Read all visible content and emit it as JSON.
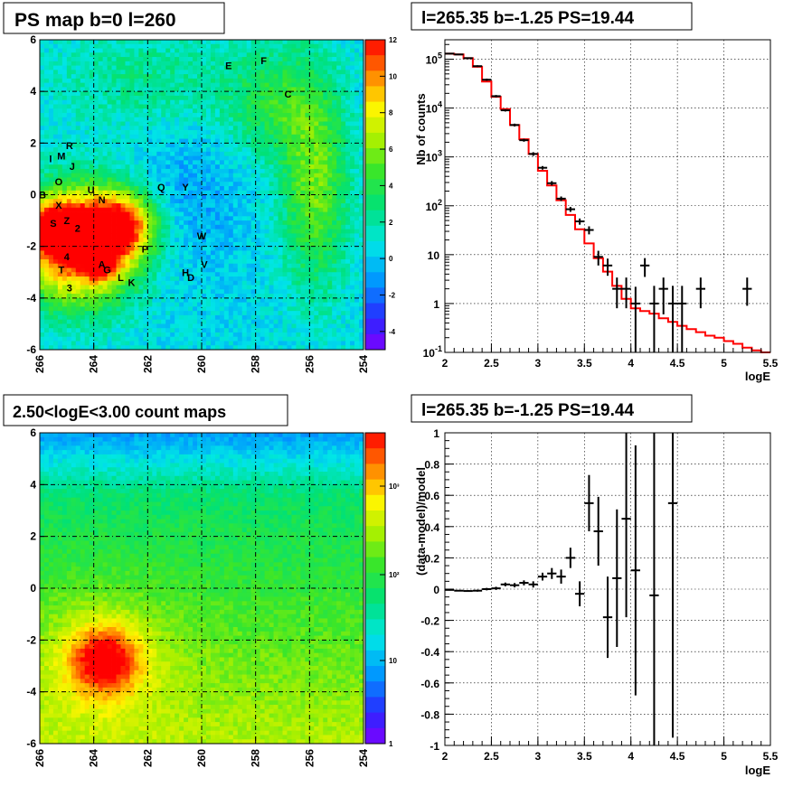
{
  "panels": {
    "map1": {
      "title": "PS map b=0 l=260"
    },
    "spec1": {
      "title": "l=265.35 b=-1.25 PS=19.44"
    },
    "map2": {
      "title": "2.50<logE<3.00 count maps"
    },
    "spec2": {
      "title": "l=265.35 b=-1.25 PS=19.44"
    }
  },
  "colors": {
    "model_line": "#ff0000",
    "data": "#000000"
  },
  "chart_data": [
    {
      "type": "heatmap",
      "title": "PS map b=0 l=260",
      "x_ticks": [
        "266",
        "264",
        "262",
        "260",
        "258",
        "256",
        "254"
      ],
      "y_ticks": [
        "6",
        "4",
        "2",
        "0",
        "-2",
        "-4",
        "-6"
      ],
      "xlim": [
        266,
        254
      ],
      "ylim": [
        -6,
        6
      ],
      "colorbar": {
        "scale": "linear",
        "range": [
          -5,
          12
        ],
        "ticks": [
          "12",
          "10",
          "8",
          "6",
          "4",
          "2",
          "0",
          "-2",
          "-4"
        ]
      },
      "grid": true,
      "sources": [
        {
          "label": "E",
          "l": 259.0,
          "b": 5.0
        },
        {
          "label": "F",
          "l": 257.7,
          "b": 5.2
        },
        {
          "label": "C",
          "l": 256.8,
          "b": 3.9
        },
        {
          "label": "R",
          "l": 264.9,
          "b": 1.9
        },
        {
          "label": "I",
          "l": 265.6,
          "b": 1.4
        },
        {
          "label": "M",
          "l": 265.2,
          "b": 1.5
        },
        {
          "label": "J",
          "l": 264.8,
          "b": 1.1
        },
        {
          "label": "O",
          "l": 265.3,
          "b": 0.5
        },
        {
          "label": "B",
          "l": 265.9,
          "b": 0.0
        },
        {
          "label": "U",
          "l": 264.1,
          "b": 0.2
        },
        {
          "label": "N",
          "l": 263.7,
          "b": -0.2
        },
        {
          "label": "X",
          "l": 265.3,
          "b": -0.4
        },
        {
          "label": "Q",
          "l": 261.5,
          "b": 0.3
        },
        {
          "label": "Y",
          "l": 260.6,
          "b": 0.3
        },
        {
          "label": "S",
          "l": 265.5,
          "b": -1.1
        },
        {
          "label": "Z",
          "l": 265.0,
          "b": -1.0
        },
        {
          "label": "2",
          "l": 264.6,
          "b": -1.3
        },
        {
          "label": "W",
          "l": 260.0,
          "b": -1.6
        },
        {
          "label": "P",
          "l": 262.1,
          "b": -2.1
        },
        {
          "label": "4",
          "l": 265.0,
          "b": -2.4
        },
        {
          "label": "A",
          "l": 263.7,
          "b": -2.7
        },
        {
          "label": "G",
          "l": 263.5,
          "b": -2.9
        },
        {
          "label": "V",
          "l": 259.9,
          "b": -2.7
        },
        {
          "label": "T",
          "l": 265.2,
          "b": -2.9
        },
        {
          "label": "H",
          "l": 260.6,
          "b": -3.0
        },
        {
          "label": "D",
          "l": 260.4,
          "b": -3.2
        },
        {
          "label": "L",
          "l": 263.0,
          "b": -3.2
        },
        {
          "label": "K",
          "l": 262.6,
          "b": -3.4
        },
        {
          "label": "3",
          "l": 264.9,
          "b": -3.6
        }
      ]
    },
    {
      "type": "line",
      "title": "l=265.35 b=-1.25 PS=19.44",
      "xlabel": "logE",
      "ylabel": "Nb of counts",
      "yscale": "log",
      "xlim": [
        2,
        5.5
      ],
      "ylim": [
        0.1,
        250000
      ],
      "x_ticks": [
        "2",
        "2.5",
        "3",
        "3.5",
        "4",
        "4.5",
        "5",
        "5.5"
      ],
      "y_ticks": [
        {
          "v": 0.1,
          "base": "10",
          "exp": "-1"
        },
        {
          "v": 1,
          "base": "1",
          "exp": ""
        },
        {
          "v": 10,
          "base": "10",
          "exp": ""
        },
        {
          "v": 100,
          "base": "10",
          "exp": "2"
        },
        {
          "v": 1000,
          "base": "10",
          "exp": "3"
        },
        {
          "v": 10000,
          "base": "10",
          "exp": "4"
        },
        {
          "v": 100000,
          "base": "10",
          "exp": "5"
        }
      ],
      "grid": true,
      "series": [
        {
          "kind": "model",
          "bin_edges": [
            2.0,
            2.1,
            2.2,
            2.3,
            2.4,
            2.5,
            2.6,
            2.7,
            2.8,
            2.9,
            3.0,
            3.1,
            3.2,
            3.3,
            3.4,
            3.5,
            3.6,
            3.7,
            3.8,
            3.9,
            4.0,
            4.1,
            4.2,
            4.3,
            4.4,
            4.5,
            4.6,
            4.7,
            4.8,
            4.9,
            5.0,
            5.1,
            5.2,
            5.3,
            5.4,
            5.5
          ],
          "values": [
            130000,
            125000,
            105000,
            70000,
            35000,
            17000,
            9500,
            4500,
            2300,
            1150,
            520,
            260,
            130,
            65,
            33,
            17,
            8.5,
            4.5,
            2.3,
            1.25,
            0.8,
            0.7,
            0.62,
            0.5,
            0.42,
            0.35,
            0.3,
            0.26,
            0.22,
            0.2,
            0.17,
            0.15,
            0.125,
            0.11,
            0.1
          ]
        },
        {
          "kind": "data",
          "points": [
            {
              "x": 2.05,
              "y": 130000,
              "lo": 126000,
              "hi": 134000
            },
            {
              "x": 2.15,
              "y": 125000,
              "lo": 121000,
              "hi": 129000
            },
            {
              "x": 2.25,
              "y": 105000,
              "lo": 101000,
              "hi": 109000
            },
            {
              "x": 2.35,
              "y": 72000,
              "lo": 69000,
              "hi": 75000
            },
            {
              "x": 2.45,
              "y": 38000,
              "lo": 36000,
              "hi": 40000
            },
            {
              "x": 2.55,
              "y": 17500,
              "lo": 16500,
              "hi": 18500
            },
            {
              "x": 2.65,
              "y": 9000,
              "lo": 8500,
              "hi": 9500
            },
            {
              "x": 2.75,
              "y": 4500,
              "lo": 4200,
              "hi": 4800
            },
            {
              "x": 2.85,
              "y": 2200,
              "lo": 2050,
              "hi": 2350
            },
            {
              "x": 2.95,
              "y": 1150,
              "lo": 1050,
              "hi": 1250
            },
            {
              "x": 3.05,
              "y": 600,
              "lo": 550,
              "hi": 650
            },
            {
              "x": 3.15,
              "y": 290,
              "lo": 260,
              "hi": 320
            },
            {
              "x": 3.25,
              "y": 140,
              "lo": 125,
              "hi": 155
            },
            {
              "x": 3.35,
              "y": 85,
              "lo": 75,
              "hi": 95
            },
            {
              "x": 3.45,
              "y": 48,
              "lo": 41,
              "hi": 55
            },
            {
              "x": 3.55,
              "y": 32,
              "lo": 26,
              "hi": 38
            },
            {
              "x": 3.65,
              "y": 9,
              "lo": 6,
              "hi": 12
            },
            {
              "x": 3.75,
              "y": 6,
              "lo": 3.7,
              "hi": 8.3
            },
            {
              "x": 3.85,
              "y": 2,
              "lo": 0.8,
              "hi": 3.4
            },
            {
              "x": 3.95,
              "y": 2,
              "lo": 0.8,
              "hi": 3.4
            },
            {
              "x": 4.05,
              "y": 1,
              "lo": 0.1,
              "hi": 2.2
            },
            {
              "x": 4.15,
              "y": 6,
              "lo": 3.5,
              "hi": 8.5
            },
            {
              "x": 4.25,
              "y": 1,
              "lo": 0.1,
              "hi": 2.3
            },
            {
              "x": 4.35,
              "y": 2,
              "lo": 0.6,
              "hi": 3.4
            },
            {
              "x": 4.45,
              "y": 1,
              "lo": 0.1,
              "hi": 2.3
            },
            {
              "x": 4.55,
              "y": 1,
              "lo": 0.1,
              "hi": 2.3
            },
            {
              "x": 4.75,
              "y": 2,
              "lo": 0.8,
              "hi": 3.4
            },
            {
              "x": 5.25,
              "y": 2,
              "lo": 0.9,
              "hi": 3.4
            }
          ]
        }
      ]
    },
    {
      "type": "heatmap",
      "title": "2.50<logE<3.00 count maps",
      "x_ticks": [
        "266",
        "264",
        "262",
        "260",
        "258",
        "256",
        "254"
      ],
      "y_ticks": [
        "6",
        "4",
        "2",
        "0",
        "-2",
        "-4",
        "-6"
      ],
      "xlim": [
        266,
        254
      ],
      "ylim": [
        -6,
        6
      ],
      "colorbar": {
        "scale": "log",
        "range": [
          1,
          5000
        ],
        "ticks": [
          "10³",
          "10²",
          "10",
          "1"
        ]
      },
      "grid": true
    },
    {
      "type": "scatter",
      "title": "l=265.35 b=-1.25 PS=19.44",
      "xlabel": "logE",
      "ylabel": "(data-model)/model",
      "xlim": [
        2,
        5.5
      ],
      "ylim": [
        -1,
        1
      ],
      "x_ticks": [
        "2",
        "2.5",
        "3",
        "3.5",
        "4",
        "4.5",
        "5",
        "5.5"
      ],
      "y_ticks": [
        "1",
        "0.8",
        "0.6",
        "0.4",
        "0.2",
        "0",
        "-0.2",
        "-0.4",
        "-0.6",
        "-0.8",
        "-1"
      ],
      "grid": true,
      "points": [
        {
          "x": 2.05,
          "y": -0.005,
          "err": 0.004
        },
        {
          "x": 2.15,
          "y": -0.01,
          "err": 0.004
        },
        {
          "x": 2.25,
          "y": -0.012,
          "err": 0.005
        },
        {
          "x": 2.35,
          "y": -0.01,
          "err": 0.006
        },
        {
          "x": 2.45,
          "y": 0.0,
          "err": 0.008
        },
        {
          "x": 2.55,
          "y": 0.005,
          "err": 0.01
        },
        {
          "x": 2.65,
          "y": 0.03,
          "err": 0.012
        },
        {
          "x": 2.75,
          "y": 0.025,
          "err": 0.014
        },
        {
          "x": 2.85,
          "y": 0.04,
          "err": 0.016
        },
        {
          "x": 2.95,
          "y": 0.03,
          "err": 0.02
        },
        {
          "x": 3.05,
          "y": 0.08,
          "err": 0.025
        },
        {
          "x": 3.15,
          "y": 0.1,
          "err": 0.035
        },
        {
          "x": 3.25,
          "y": 0.08,
          "err": 0.045
        },
        {
          "x": 3.35,
          "y": 0.2,
          "err": 0.065
        },
        {
          "x": 3.45,
          "y": -0.03,
          "err": 0.08
        },
        {
          "x": 3.55,
          "y": 0.55,
          "err": 0.18
        },
        {
          "x": 3.65,
          "y": 0.37,
          "err": 0.22
        },
        {
          "x": 3.75,
          "y": -0.18,
          "err": 0.26
        },
        {
          "x": 3.85,
          "y": 0.07,
          "err": 0.44
        },
        {
          "x": 3.95,
          "y": 0.45,
          "err": 0.63
        },
        {
          "x": 4.05,
          "y": 0.12,
          "err": 0.8
        },
        {
          "x": 4.25,
          "y": -0.04,
          "err": 1.2
        },
        {
          "x": 4.45,
          "y": 0.55,
          "err": 1.5
        }
      ]
    }
  ]
}
